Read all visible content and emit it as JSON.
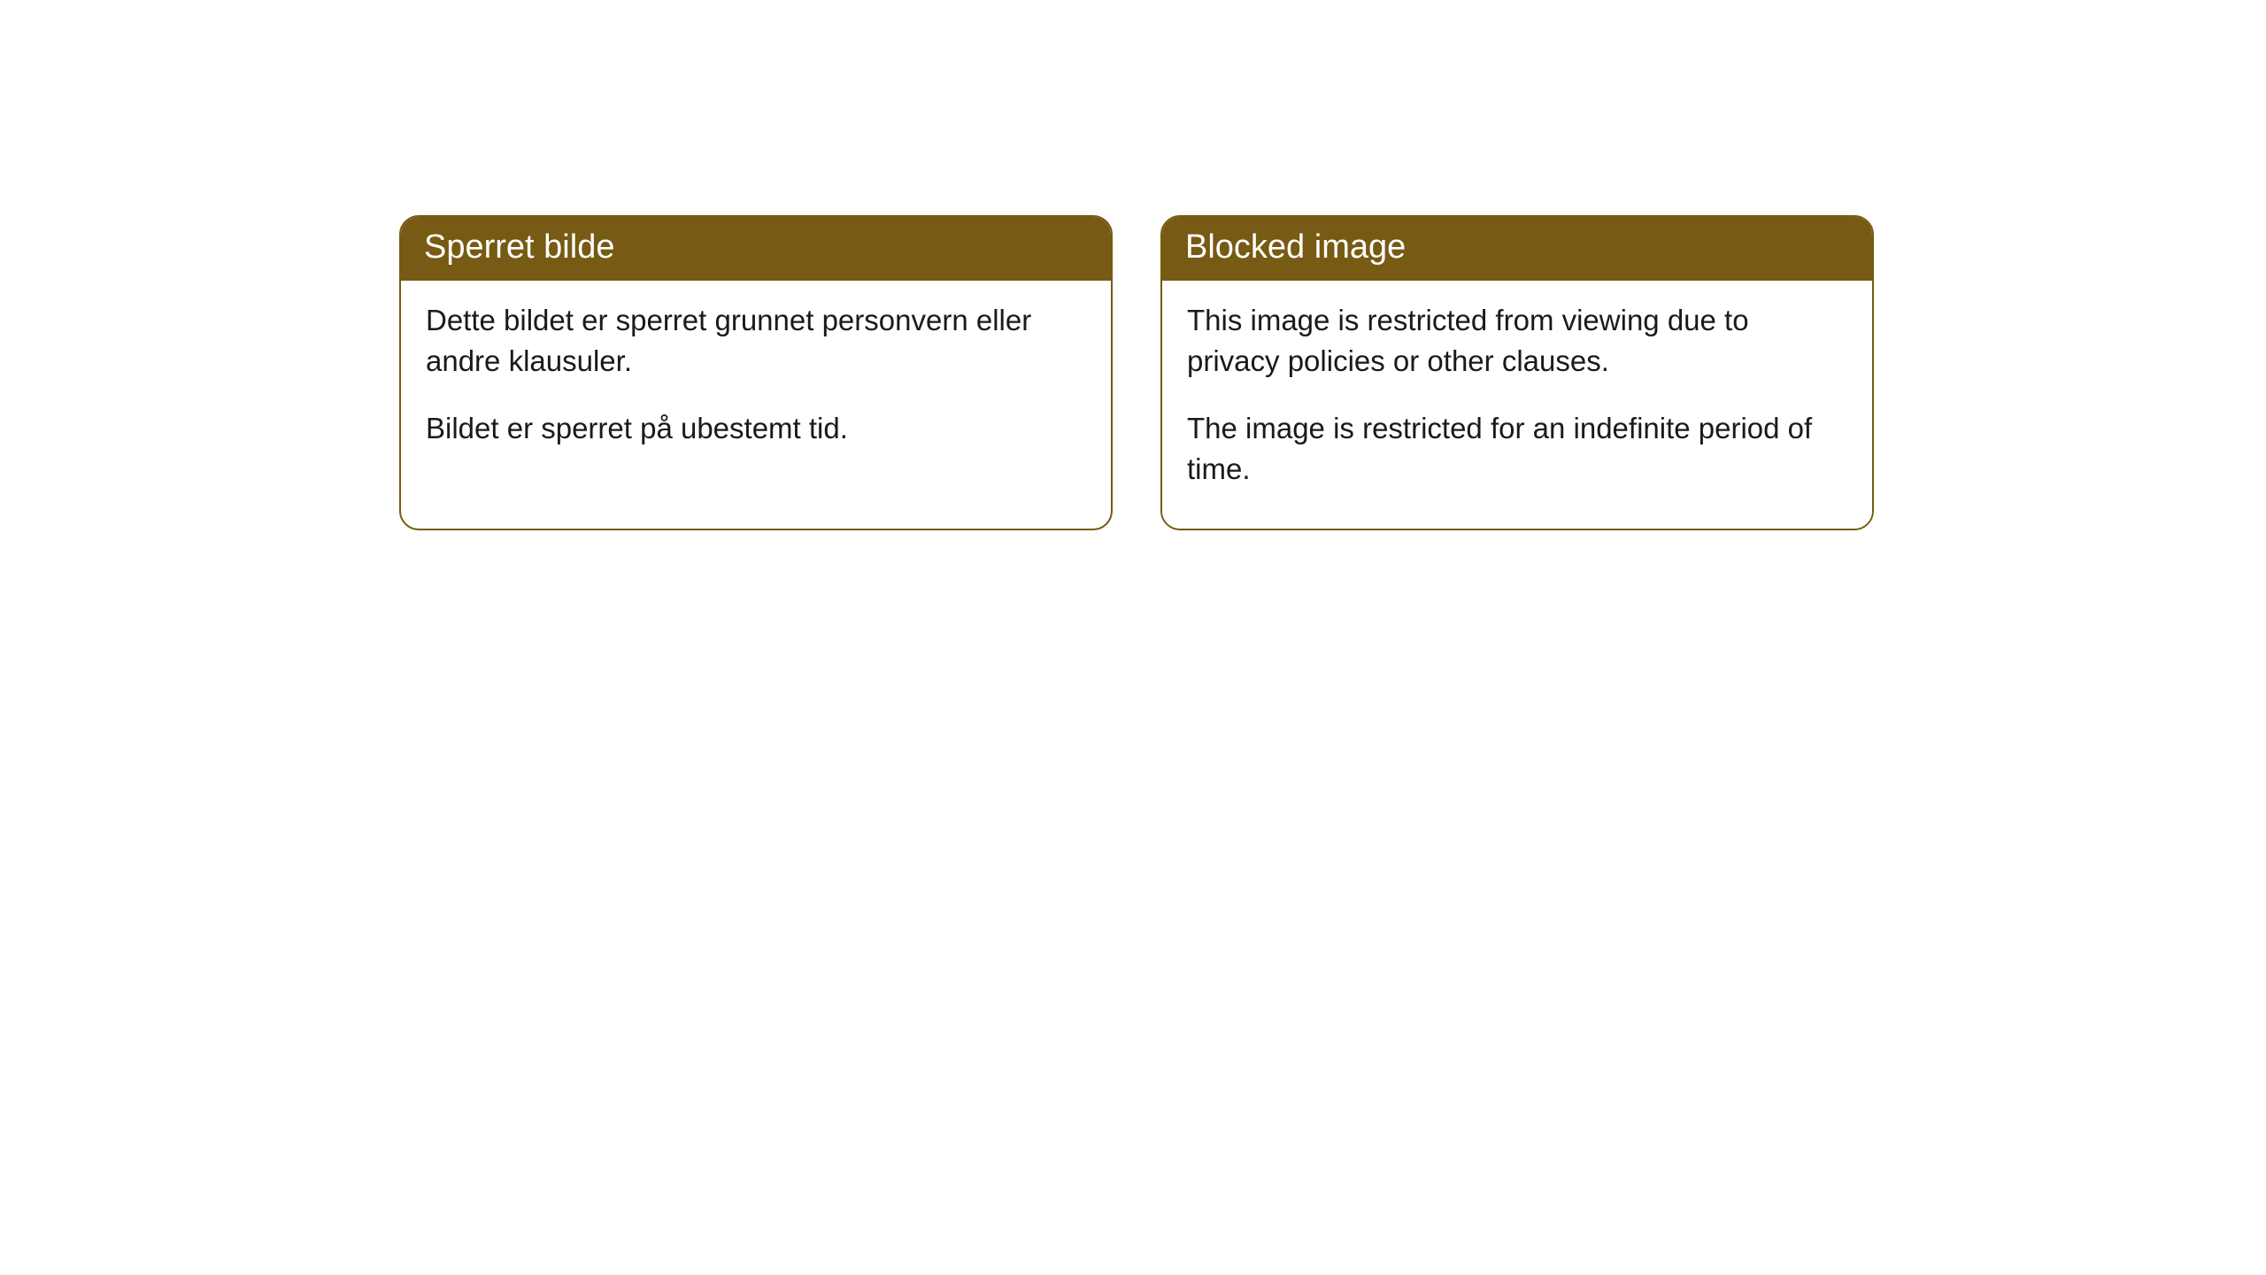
{
  "cards": [
    {
      "title": "Sperret bilde",
      "paragraph1": "Dette bildet er sperret grunnet personvern eller andre klausuler.",
      "paragraph2": "Bildet er sperret på ubestemt tid."
    },
    {
      "title": "Blocked image",
      "paragraph1": "This image is restricted from viewing due to privacy policies or other clauses.",
      "paragraph2": "The image is restricted for an indefinite period of time."
    }
  ],
  "styles": {
    "header_background": "#775a13",
    "header_text_color": "#ffffff",
    "border_color": "#775a13",
    "body_background": "#ffffff",
    "body_text_color": "#1a1a1a",
    "border_radius": 22,
    "header_fontsize": 38,
    "body_fontsize": 33
  }
}
